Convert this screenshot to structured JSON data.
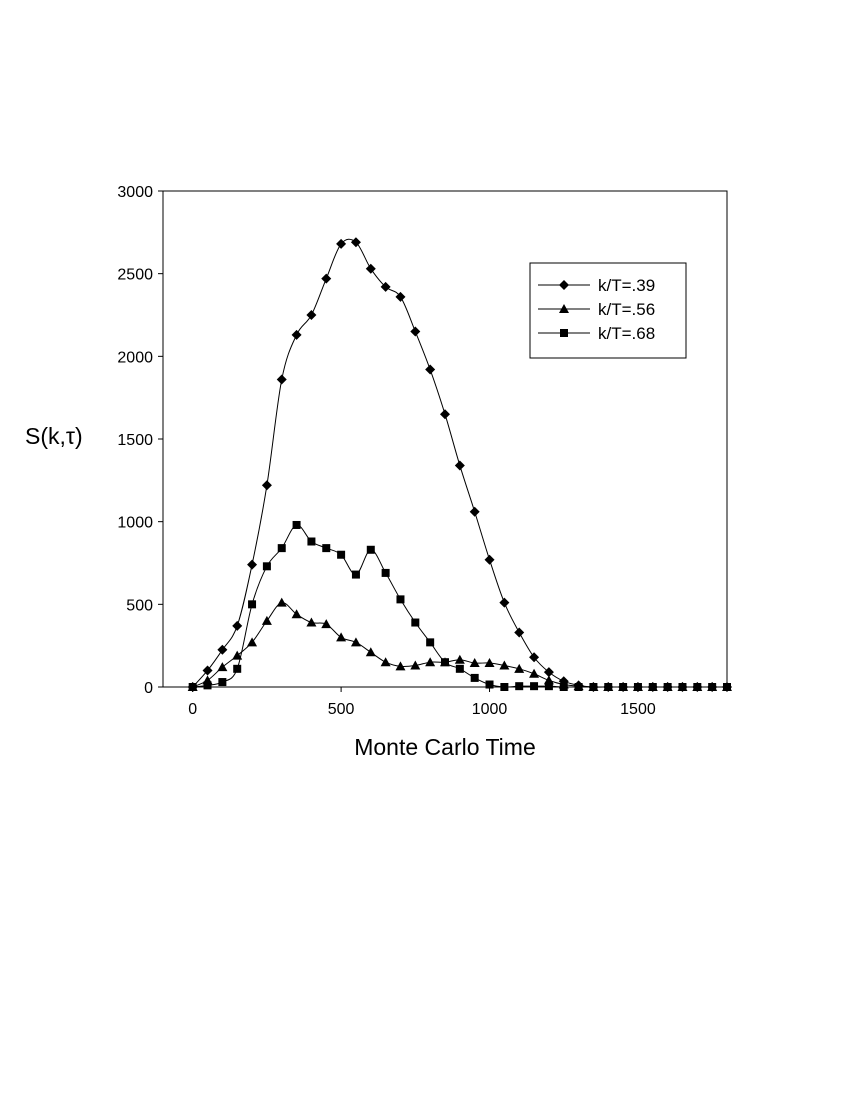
{
  "chart_data": {
    "type": "line",
    "title": "",
    "xlabel": "Monte Carlo Time",
    "ylabel": "S(k,τ)",
    "xlim": [
      -100,
      1800
    ],
    "ylim": [
      0,
      3000
    ],
    "xticks": [
      0,
      500,
      1000,
      1500
    ],
    "yticks": [
      0,
      500,
      1000,
      1500,
      2000,
      2500,
      3000
    ],
    "xtick_labels": [
      "0",
      "500",
      "1000",
      "1500"
    ],
    "ytick_labels": [
      "0",
      "500",
      "1000",
      "1500",
      "2000",
      "2500",
      "3000"
    ],
    "grid": false,
    "legend_position": "top-right",
    "x": [
      0,
      50,
      100,
      150,
      200,
      250,
      300,
      350,
      400,
      450,
      500,
      550,
      600,
      650,
      700,
      750,
      800,
      850,
      900,
      950,
      1000,
      1050,
      1100,
      1150,
      1200,
      1250,
      1300,
      1350,
      1400,
      1450,
      1500,
      1550,
      1600,
      1650,
      1700,
      1750,
      1800
    ],
    "series": [
      {
        "name": "k/T=.39",
        "marker": "diamond",
        "values": [
          0,
          100,
          225,
          370,
          740,
          1220,
          1860,
          2130,
          2250,
          2470,
          2680,
          2690,
          2530,
          2420,
          2360,
          2150,
          1920,
          1650,
          1340,
          1060,
          770,
          510,
          330,
          180,
          90,
          35,
          10,
          0,
          0,
          0,
          0,
          0,
          0,
          0,
          0,
          0,
          0
        ]
      },
      {
        "name": "k/T=.56",
        "marker": "triangle",
        "values": [
          0,
          40,
          120,
          190,
          270,
          400,
          510,
          440,
          390,
          380,
          300,
          270,
          210,
          150,
          125,
          130,
          150,
          150,
          165,
          145,
          145,
          130,
          110,
          80,
          40,
          15,
          5,
          0,
          0,
          0,
          0,
          0,
          0,
          0,
          0,
          0,
          0
        ]
      },
      {
        "name": "k/T=.68",
        "marker": "square",
        "values": [
          0,
          10,
          30,
          110,
          500,
          730,
          840,
          980,
          880,
          840,
          800,
          680,
          830,
          690,
          530,
          390,
          270,
          150,
          110,
          55,
          15,
          0,
          5,
          5,
          5,
          0,
          0,
          0,
          0,
          0,
          0,
          0,
          0,
          0,
          0,
          0,
          0
        ]
      }
    ]
  }
}
